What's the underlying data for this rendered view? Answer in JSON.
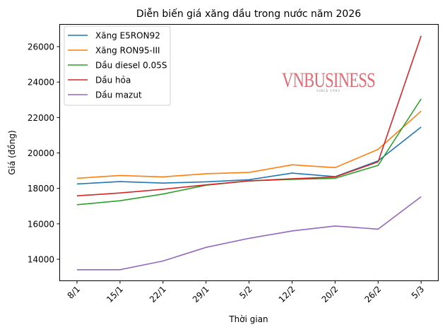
{
  "chart_data": {
    "type": "line",
    "title": "Diễn biến giá xăng dầu trong nước năm 2026",
    "xlabel": "Thời gian",
    "ylabel": "Giá (đồng)",
    "categories": [
      "8/1",
      "15/1",
      "22/1",
      "29/1",
      "5/2",
      "12/2",
      "20/2",
      "26/2",
      "5/3"
    ],
    "yticks": [
      14000,
      16000,
      18000,
      20000,
      22000,
      24000,
      26000
    ],
    "ylim": [
      12800,
      27250
    ],
    "grid": false,
    "legend_position": "upper left",
    "series": [
      {
        "name": "Xăng E5RON92",
        "color": "#1f77b4",
        "values": [
          18250,
          18380,
          18300,
          18370,
          18490,
          18860,
          18660,
          19550,
          21460
        ]
      },
      {
        "name": "Xăng RON95-III",
        "color": "#ff7f0e",
        "values": [
          18570,
          18730,
          18650,
          18830,
          18900,
          19330,
          19170,
          20200,
          22360
        ]
      },
      {
        "name": "Dầu diesel 0.05S",
        "color": "#2ca02c",
        "values": [
          17080,
          17300,
          17680,
          18180,
          18420,
          18510,
          18570,
          19300,
          23050
        ]
      },
      {
        "name": "Dầu hỏa",
        "color": "#d62728",
        "values": [
          17580,
          17740,
          17950,
          18200,
          18420,
          18540,
          18640,
          19500,
          26610
        ]
      },
      {
        "name": "Dầu mazut",
        "color": "#9467bd",
        "values": [
          13410,
          13410,
          13900,
          14670,
          15180,
          15600,
          15880,
          15700,
          17530
        ]
      }
    ]
  },
  "watermark": {
    "main": "VNBUSINESS",
    "sub": "SINCE 1993"
  }
}
